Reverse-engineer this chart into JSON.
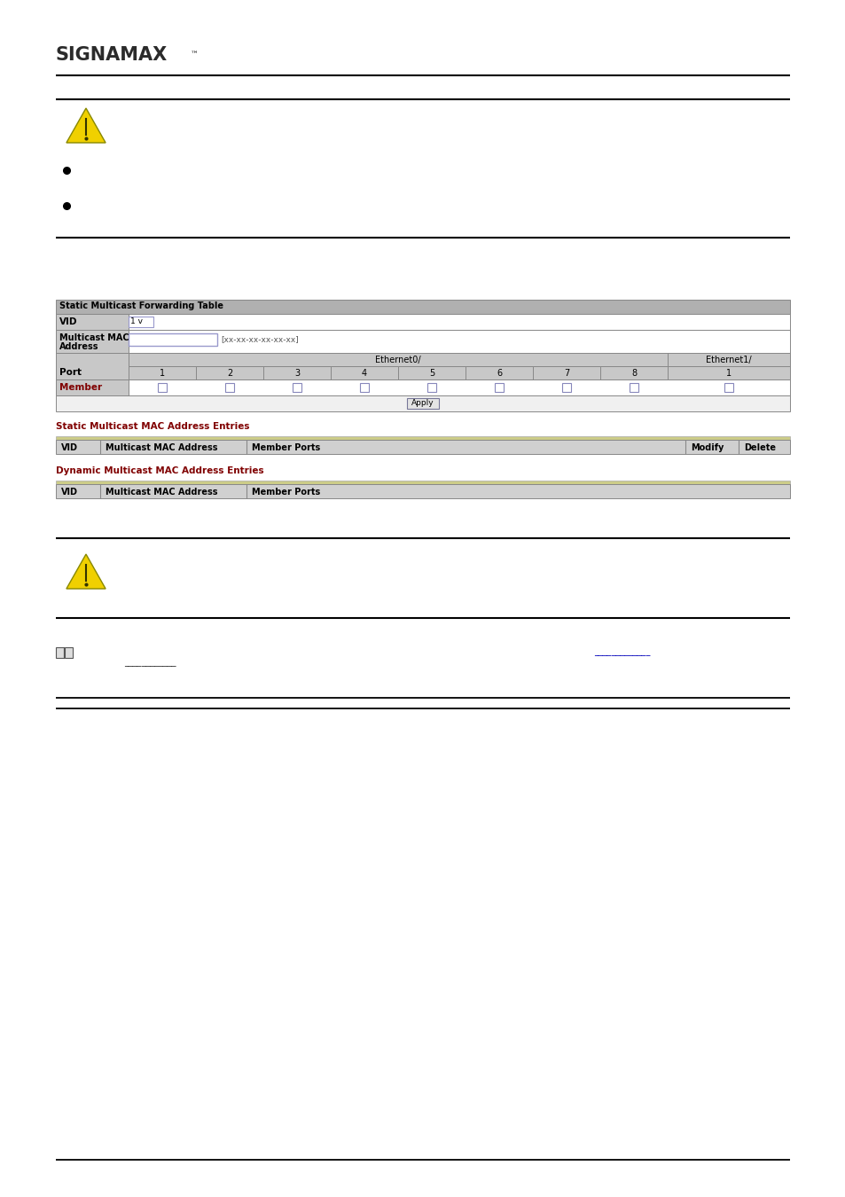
{
  "bg_color": "#ffffff",
  "signamax_text": "SIGNAMAX",
  "table1_title": "Static Multicast Forwarding Table",
  "vid_label": "VID",
  "port_label": "Port",
  "member_label": "Member",
  "ethernet0_label": "Ethernet0/",
  "ethernet1_label": "Ethernet1/",
  "port_numbers": [
    "1",
    "2",
    "3",
    "4",
    "5",
    "6",
    "7",
    "8",
    "1"
  ],
  "apply_label": "Apply",
  "static_entries_label": "Static Multicast MAC Address Entries",
  "dynamic_entries_label": "Dynamic Multicast MAC Address Entries",
  "static_table_headers": [
    "VID",
    "Multicast MAC Address",
    "Member Ports",
    "Modify",
    "Delete"
  ],
  "dynamic_table_headers": [
    "VID",
    "Multicast MAC Address",
    "Member Ports"
  ],
  "header_bg": "#b0b0b0",
  "row_label_bg": "#c8c8c8",
  "row_bg": "#e0e0e0",
  "table_entry_bg": "#d0d0d0",
  "border_color": "#888888",
  "red_label": "#800000",
  "dark_text": "#2b2b2b",
  "gray_text": "#555555",
  "blue_link": "#0000bb"
}
